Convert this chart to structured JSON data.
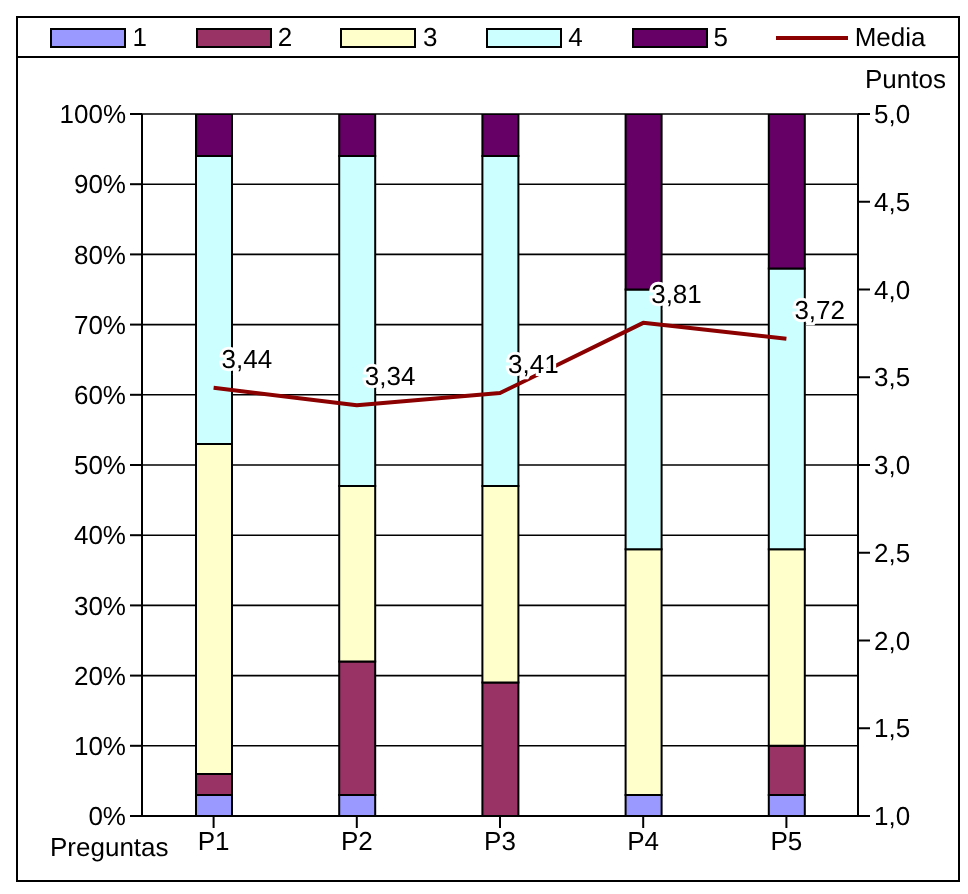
{
  "chart_data": {
    "type": "bar",
    "stacked": true,
    "xlabel": "Preguntas",
    "y2label": "Puntos",
    "categories": [
      "P1",
      "P2",
      "P3",
      "P4",
      "P5"
    ],
    "series": [
      {
        "name": "1",
        "color": "#9999ff",
        "values": [
          3,
          3,
          0,
          3,
          3
        ]
      },
      {
        "name": "2",
        "color": "#993366",
        "values": [
          3,
          19,
          19,
          0,
          7
        ]
      },
      {
        "name": "3",
        "color": "#ffffcc",
        "values": [
          47,
          25,
          28,
          35,
          28
        ]
      },
      {
        "name": "4",
        "color": "#ccffff",
        "values": [
          41,
          47,
          47,
          37,
          40
        ]
      },
      {
        "name": "5",
        "color": "#660066",
        "values": [
          6,
          6,
          6,
          25,
          22
        ]
      },
      {
        "name": "Media",
        "type": "line",
        "axis": "y2",
        "color": "#8b0000",
        "marker": "none",
        "values": [
          3.44,
          3.34,
          3.41,
          3.81,
          3.72
        ],
        "value_labels": [
          "3,44",
          "3,34",
          "3,41",
          "3,81",
          "3,72"
        ]
      }
    ],
    "ylim": [
      0,
      100
    ],
    "yticks": [
      {
        "value": 0,
        "label": "0%"
      },
      {
        "value": 10,
        "label": "10%"
      },
      {
        "value": 20,
        "label": "20%"
      },
      {
        "value": 30,
        "label": "30%"
      },
      {
        "value": 40,
        "label": "40%"
      },
      {
        "value": 50,
        "label": "50%"
      },
      {
        "value": 60,
        "label": "60%"
      },
      {
        "value": 70,
        "label": "70%"
      },
      {
        "value": 80,
        "label": "80%"
      },
      {
        "value": 90,
        "label": "90%"
      },
      {
        "value": 100,
        "label": "100%"
      }
    ],
    "y2lim": [
      1,
      5
    ],
    "y2ticks": [
      {
        "value": 1,
        "label": "1,0"
      },
      {
        "value": 1.5,
        "label": "1,5"
      },
      {
        "value": 2,
        "label": "2,0"
      },
      {
        "value": 2.5,
        "label": "2,5"
      },
      {
        "value": 3,
        "label": "3,0"
      },
      {
        "value": 3.5,
        "label": "3,5"
      },
      {
        "value": 4,
        "label": "4,0"
      },
      {
        "value": 4.5,
        "label": "4,5"
      },
      {
        "value": 5,
        "label": "5,0"
      }
    ],
    "grid": "y",
    "legend": "top"
  }
}
